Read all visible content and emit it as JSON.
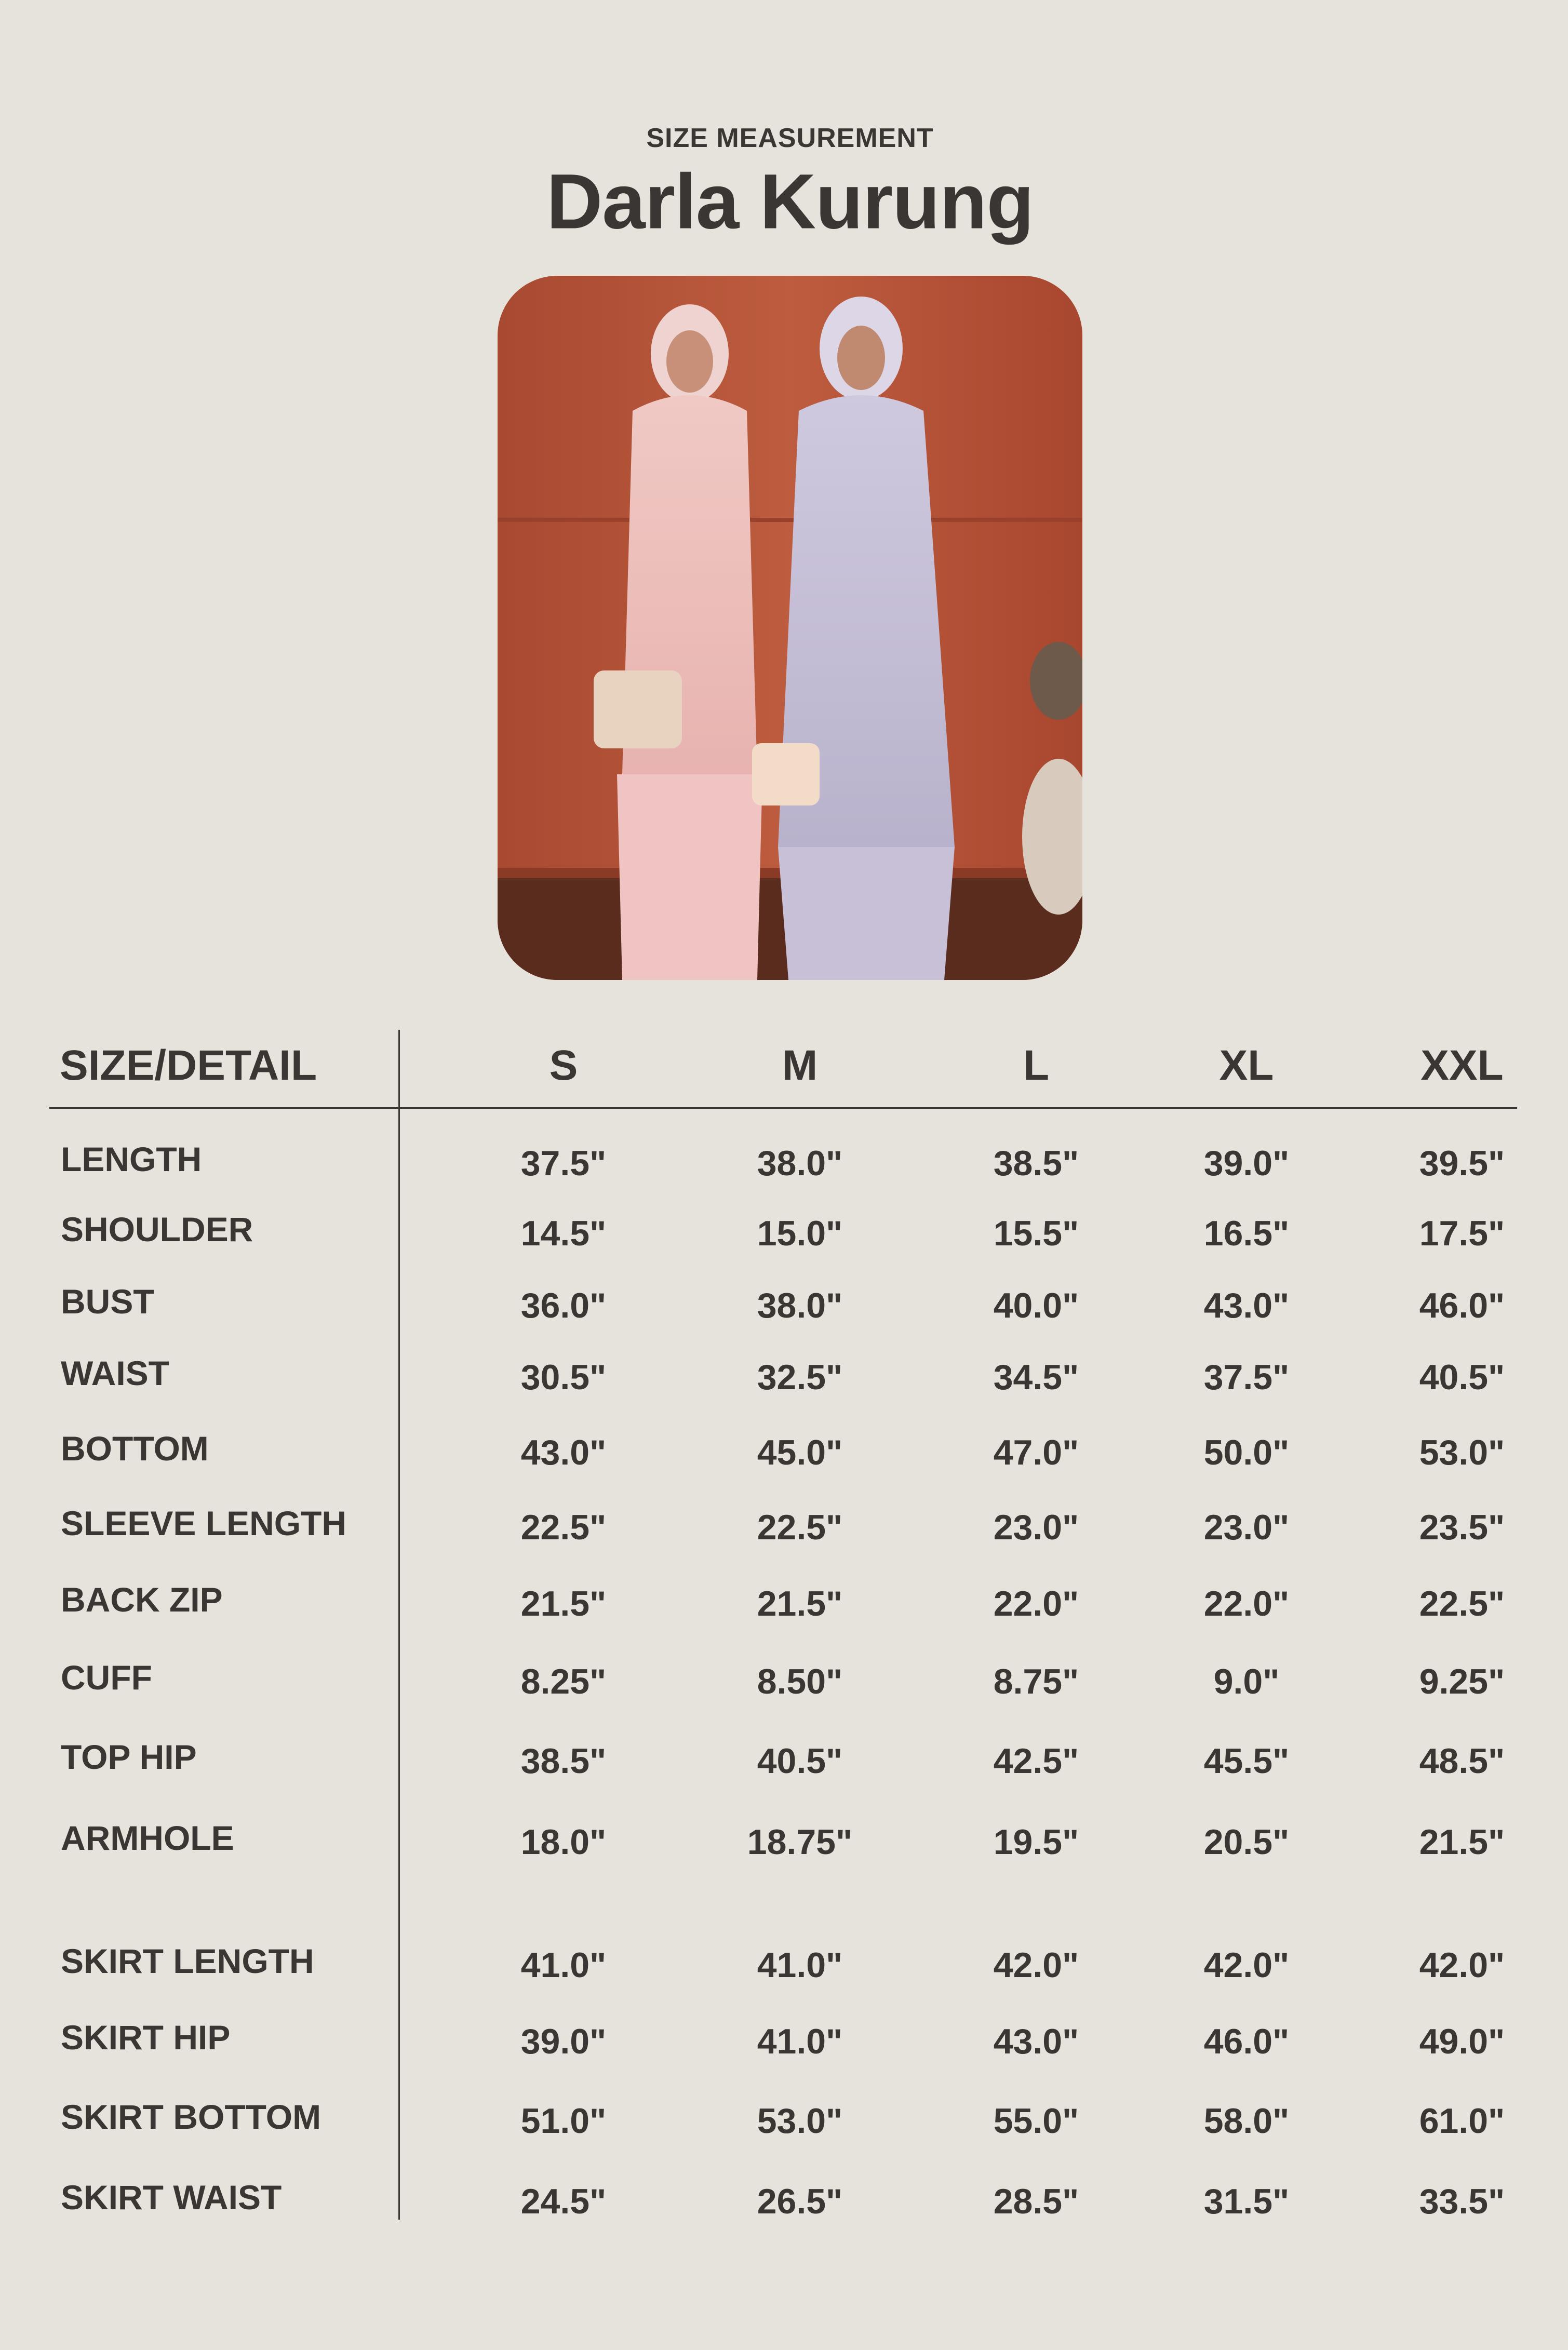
{
  "header": {
    "subtitle": "SIZE MEASUREMENT",
    "title": "Darla Kurung"
  },
  "photo": {
    "description_icon": "product-photo",
    "wall_color": "#b5573a"
  },
  "table": {
    "corner_label": "SIZE/DETAIL",
    "sizes": [
      "S",
      "M",
      "L",
      "XL",
      "XXL"
    ],
    "rows": [
      {
        "label": "LENGTH",
        "values": [
          "37.5\"",
          "38.0\"",
          "38.5\"",
          "39.0\"",
          "39.5\""
        ]
      },
      {
        "label": "SHOULDER",
        "values": [
          "14.5\"",
          "15.0\"",
          "15.5\"",
          "16.5\"",
          "17.5\""
        ]
      },
      {
        "label": "BUST",
        "values": [
          "36.0\"",
          "38.0\"",
          "40.0\"",
          "43.0\"",
          "46.0\""
        ]
      },
      {
        "label": "WAIST",
        "values": [
          "30.5\"",
          "32.5\"",
          "34.5\"",
          "37.5\"",
          "40.5\""
        ]
      },
      {
        "label": "BOTTOM",
        "values": [
          "43.0\"",
          "45.0\"",
          "47.0\"",
          "50.0\"",
          "53.0\""
        ]
      },
      {
        "label": "SLEEVE LENGTH",
        "values": [
          "22.5\"",
          "22.5\"",
          "23.0\"",
          "23.0\"",
          "23.5\""
        ]
      },
      {
        "label": "BACK ZIP",
        "values": [
          "21.5\"",
          "21.5\"",
          "22.0\"",
          "22.0\"",
          "22.5\""
        ]
      },
      {
        "label": "CUFF",
        "values": [
          "8.25\"",
          "8.50\"",
          "8.75\"",
          "9.0\"",
          "9.25\""
        ]
      },
      {
        "label": "TOP HIP",
        "values": [
          "38.5\"",
          "40.5\"",
          "42.5\"",
          "45.5\"",
          "48.5\""
        ]
      },
      {
        "label": "ARMHOLE",
        "values": [
          "18.0\"",
          "18.75\"",
          "19.5\"",
          "20.5\"",
          "21.5\""
        ]
      },
      {
        "label": "SKIRT LENGTH",
        "values": [
          "41.0\"",
          "41.0\"",
          "42.0\"",
          "42.0\"",
          "42.0\""
        ]
      },
      {
        "label": "SKIRT HIP",
        "values": [
          "39.0\"",
          "41.0\"",
          "43.0\"",
          "46.0\"",
          "49.0\""
        ]
      },
      {
        "label": "SKIRT BOTTOM",
        "values": [
          "51.0\"",
          "53.0\"",
          "55.0\"",
          "58.0\"",
          "61.0\""
        ]
      },
      {
        "label": "SKIRT WAIST",
        "values": [
          "24.5\"",
          "26.5\"",
          "28.5\"",
          "31.5\"",
          "33.5\""
        ]
      }
    ]
  }
}
